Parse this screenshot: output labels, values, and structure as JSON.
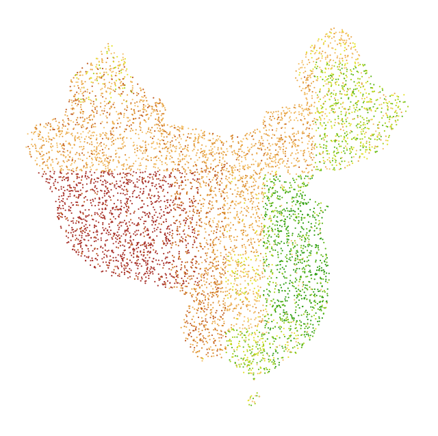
{
  "map": {
    "type": "dot-density",
    "background": "#ffffff",
    "palette": {
      "dark-red": "#a8322b",
      "rust": "#c05a1f",
      "orange": "#d98a2e",
      "tan": "#e9a84a",
      "light-tan": "#f3c06a",
      "yellow": "#e3e12a",
      "lime": "#a6d11a",
      "green": "#5fb81a",
      "dark-green": "#2f9e14"
    }
  }
}
